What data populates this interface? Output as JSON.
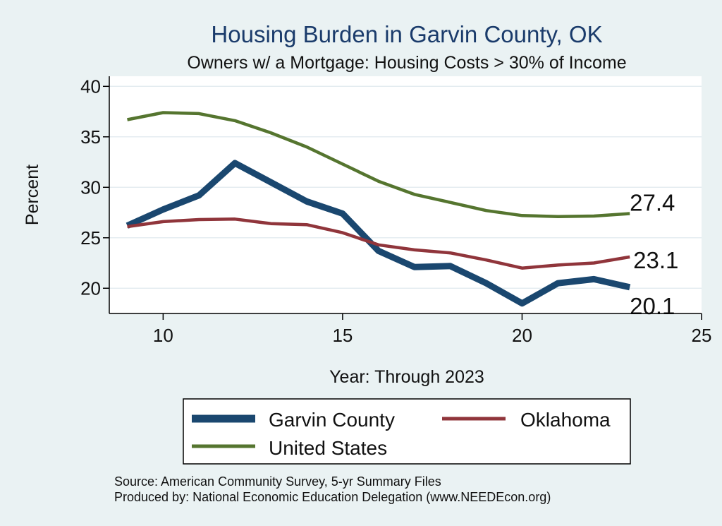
{
  "chart_data": {
    "type": "line",
    "title": "Housing Burden in Garvin County, OK",
    "subtitle": "Owners w/ a Mortgage: Housing Costs > 30% of Income",
    "xlabel": "Year: Through 2023",
    "ylabel": "Percent",
    "xlim": [
      8.5,
      25
    ],
    "ylim": [
      17.5,
      41
    ],
    "xticks": [
      10,
      15,
      20,
      25
    ],
    "yticks": [
      20,
      25,
      30,
      35,
      40
    ],
    "grid": true,
    "x": [
      9,
      10,
      11,
      12,
      13,
      14,
      15,
      16,
      17,
      18,
      19,
      20,
      21,
      22,
      23
    ],
    "series": [
      {
        "name": "Garvin County",
        "color": "#1a476f",
        "values": [
          26.2,
          27.8,
          29.2,
          32.4,
          30.5,
          28.6,
          27.4,
          23.7,
          22.1,
          22.2,
          20.5,
          18.5,
          20.5,
          20.9,
          20.1
        ],
        "end_label": "20.1"
      },
      {
        "name": "Oklahoma",
        "color": "#90353b",
        "values": [
          26.1,
          26.6,
          26.8,
          26.85,
          26.4,
          26.3,
          25.5,
          24.3,
          23.8,
          23.5,
          22.8,
          22.0,
          22.3,
          22.5,
          23.1
        ],
        "end_label": "23.1"
      },
      {
        "name": "United States",
        "color": "#55752f",
        "values": [
          36.7,
          37.4,
          37.3,
          36.6,
          35.4,
          34.0,
          32.3,
          30.6,
          29.3,
          28.5,
          27.7,
          27.2,
          27.1,
          27.15,
          27.4
        ],
        "end_label": "27.4"
      }
    ],
    "legend": [
      "Garvin County",
      "Oklahoma",
      "United States"
    ]
  },
  "source_lines": [
    "Source: American Community Survey, 5-yr Summary Files",
    "Produced by: National Economic Education Delegation (www.NEEDEcon.org)"
  ],
  "colors": {
    "background": "#eaf2f3",
    "plot_background": "#ffffff",
    "grid": "#e4ecf0",
    "title": "#1a3b6b"
  }
}
